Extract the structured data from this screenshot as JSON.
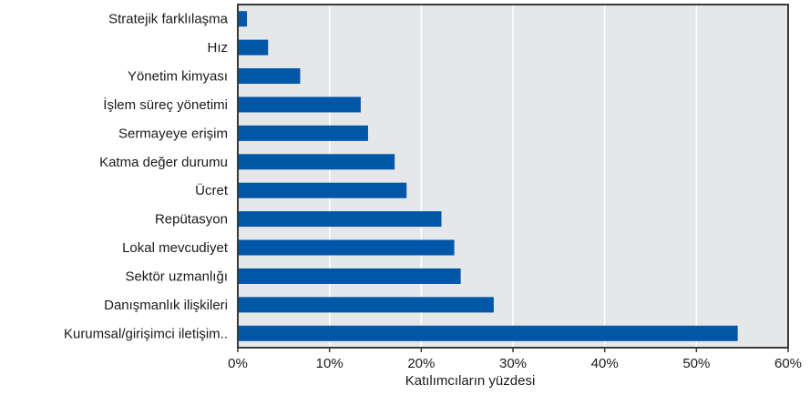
{
  "chart_data": {
    "type": "bar",
    "orientation": "horizontal",
    "categories": [
      "Stratejik farklılaşma",
      "Hız",
      "Yönetim kimyası",
      "İşlem süreç yönetimi",
      "Sermayeye erişim",
      "Katma değer durumu",
      "Ücret",
      "Repütasyon",
      "Lokal mevcudiyet",
      "Sektör uzmanlığı",
      "Danışmanlık ilişkileri",
      "Kurumsal/girişimci iletişim.."
    ],
    "values": [
      1,
      3.3,
      6.8,
      13.4,
      14.2,
      17.1,
      18.4,
      22.2,
      23.6,
      24.3,
      27.9,
      54.5
    ],
    "xlabel": "Katılımcıların yüzdesi",
    "ylabel": "",
    "xlim": [
      0,
      60
    ],
    "xticks": [
      0,
      10,
      20,
      30,
      40,
      50,
      60
    ],
    "xtick_labels": [
      "0%",
      "10%",
      "20%",
      "30%",
      "40%",
      "50%",
      "60%"
    ],
    "grid": "vertical",
    "colors": {
      "bar": "#0057a8",
      "plot_background": "#e6e7e8",
      "grid": "#ffffff",
      "frame": "#3a3a3a"
    }
  }
}
